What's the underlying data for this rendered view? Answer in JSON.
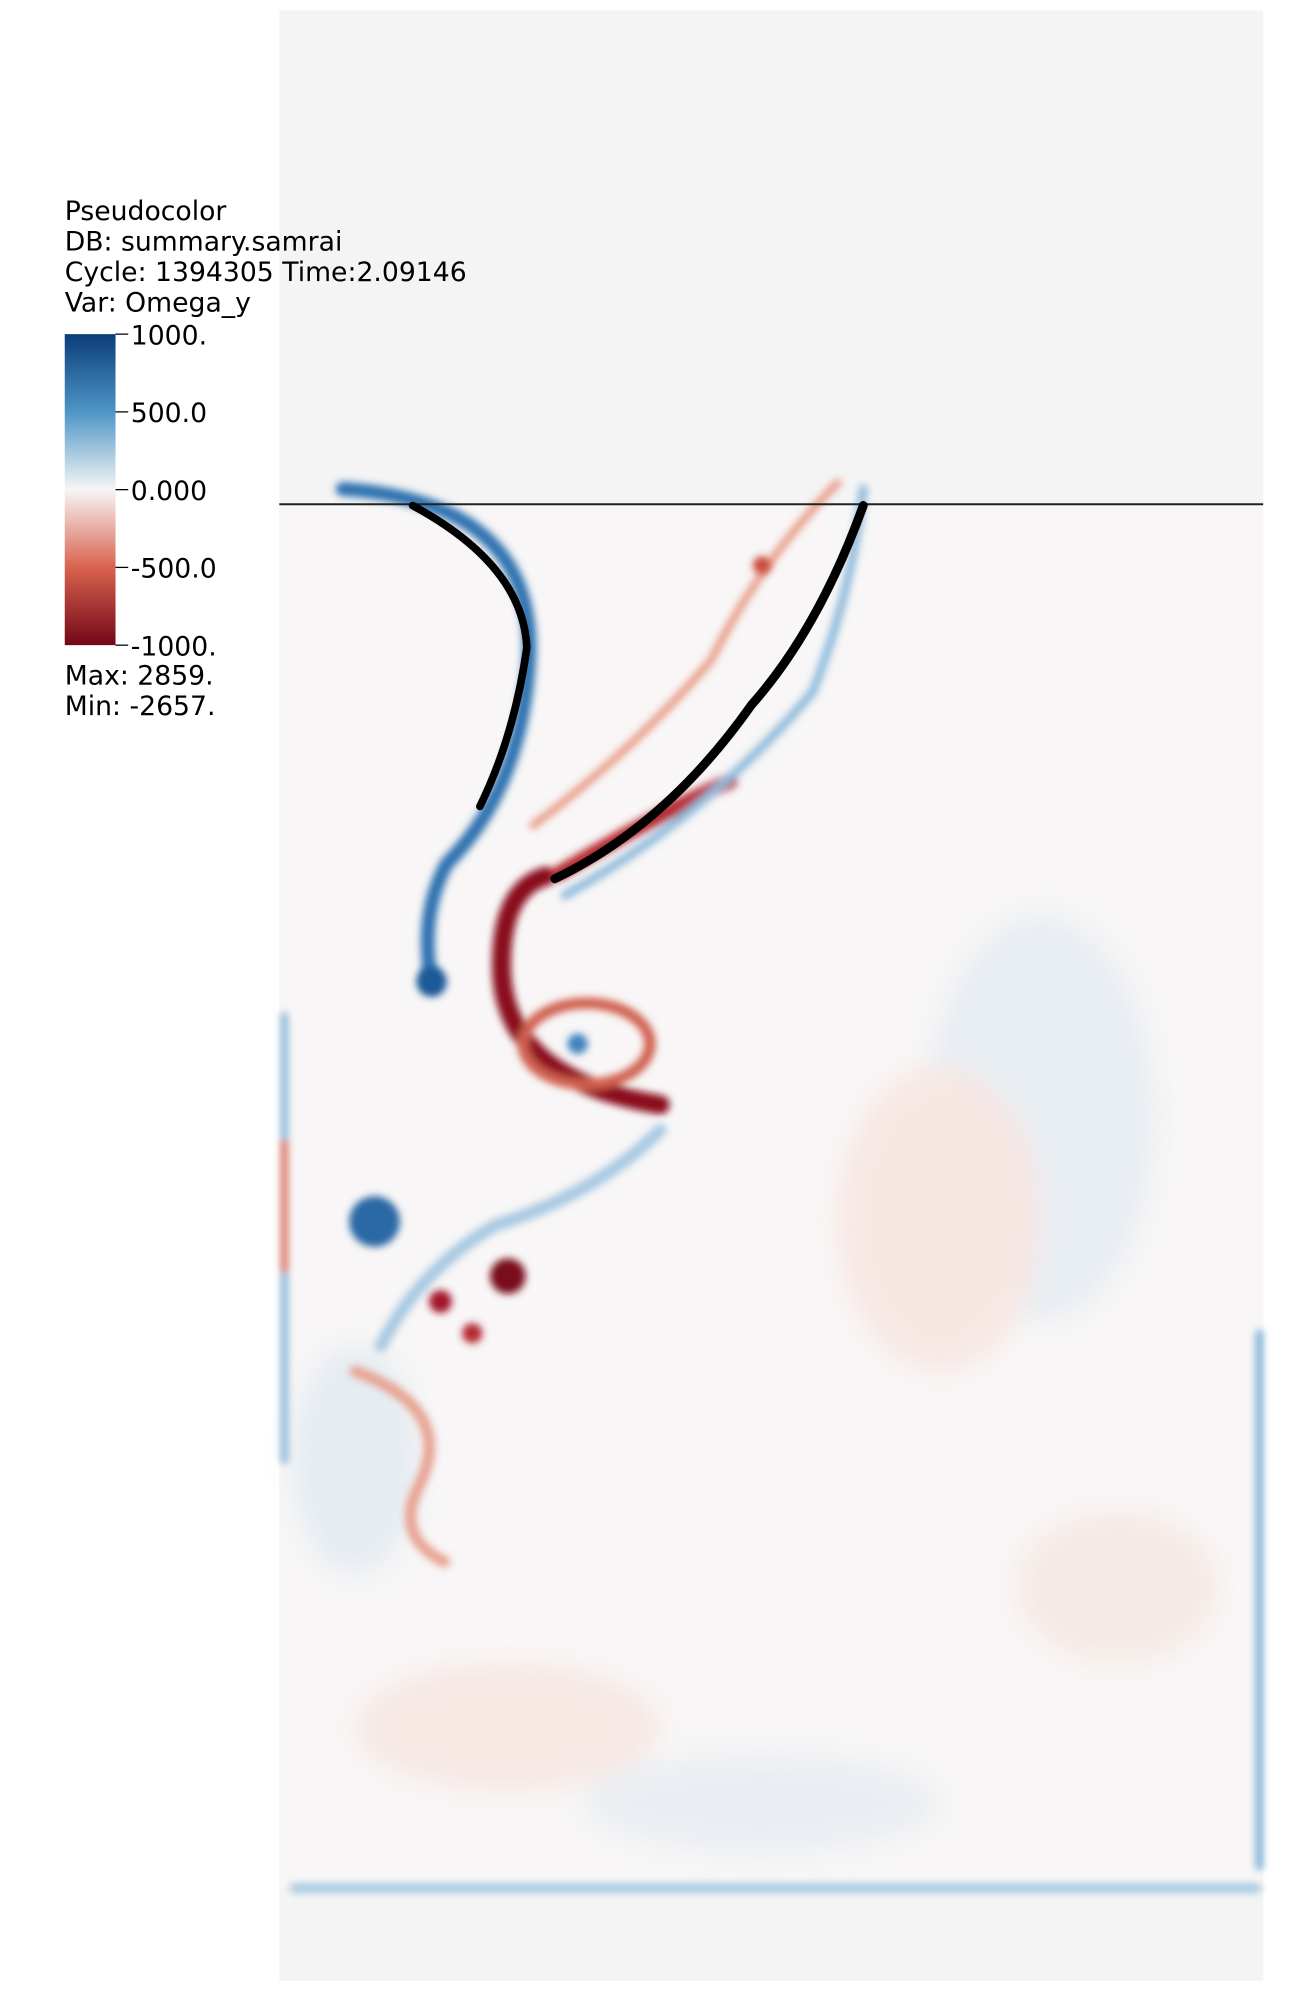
{
  "legend": {
    "plot_type": "Pseudocolor",
    "db": "DB: summary.samrai",
    "cycle_time": "Cycle: 1394305  Time:2.09146",
    "var": "Var: Omega_y",
    "colorbar_ticks": [
      "1000.",
      "500.0",
      "0.000",
      "-500.0",
      "-1000."
    ],
    "max": "Max:  2859.",
    "min": "Min: -2657."
  }
}
